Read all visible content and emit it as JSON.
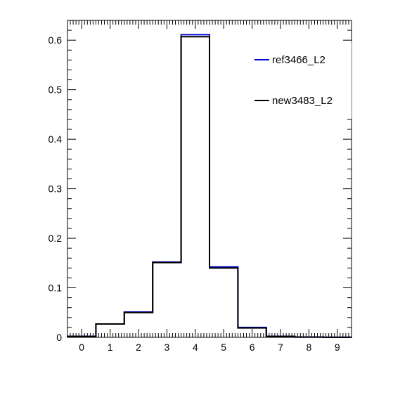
{
  "chart_data": {
    "type": "histogram",
    "title": "",
    "xlabel": "",
    "ylabel": "",
    "xlim": [
      -0.5,
      9.5
    ],
    "ylim": [
      0,
      0.64
    ],
    "x_ticks": [
      0,
      1,
      2,
      3,
      4,
      5,
      6,
      7,
      8,
      9
    ],
    "y_ticks": [
      0,
      0.1,
      0.2,
      0.3,
      0.4,
      0.5,
      0.6
    ],
    "y_tick_labels": [
      "0",
      "0.1",
      "0.2",
      "0.3",
      "0.4",
      "0.5",
      "0.6"
    ],
    "bin_edges": [
      -0.5,
      0.5,
      1.5,
      2.5,
      3.5,
      4.5,
      5.5,
      6.5,
      7.5,
      8.5,
      9.5
    ],
    "series": [
      {
        "name": "ref3466_L2",
        "color": "#0000cc",
        "values": [
          0.002,
          0.027,
          0.051,
          0.152,
          0.611,
          0.142,
          0.02,
          0.002,
          0.0005,
          0.0002
        ]
      },
      {
        "name": "new3483_L2",
        "color": "#000000",
        "values": [
          0.002,
          0.027,
          0.05,
          0.151,
          0.607,
          0.14,
          0.019,
          0.002,
          0.0005,
          0.0002
        ]
      }
    ],
    "legend": {
      "position": "top-right"
    },
    "grid": false
  }
}
